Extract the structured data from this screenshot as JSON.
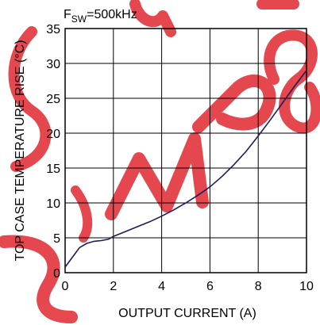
{
  "annotation": {
    "prefix": "F",
    "sub": "SW",
    "rest": "=500kHz"
  },
  "watermark": {
    "text": "MP8",
    "color": "#e0282f"
  },
  "chart_data": {
    "type": "line",
    "title": "",
    "xlabel": "OUTPUT CURRENT (A)",
    "ylabel": "TOP CASE TEMPERATURE RISE (°C)",
    "xlim": [
      0,
      10
    ],
    "ylim": [
      0,
      35
    ],
    "xticks": [
      0,
      2,
      4,
      6,
      8,
      10
    ],
    "yticks": [
      0,
      5,
      10,
      15,
      20,
      25,
      30,
      35
    ],
    "grid": true,
    "line_color": "#1f1a5c",
    "series": [
      {
        "x": [
          0,
          0.3,
          0.6,
          0.9,
          1.2,
          1.5,
          1.8,
          2.0,
          2.5,
          3.0,
          3.5,
          4.0,
          4.5,
          5.0,
          5.5,
          6.0,
          6.5,
          7.0,
          7.5,
          8.0,
          8.5,
          9.0,
          9.5,
          10.0
        ],
        "y": [
          0.8,
          2.2,
          3.6,
          4.2,
          4.5,
          4.6,
          4.8,
          5.2,
          5.9,
          6.6,
          7.3,
          8.1,
          9.0,
          10.0,
          11.1,
          12.3,
          13.8,
          15.5,
          17.4,
          19.6,
          21.9,
          24.3,
          26.7,
          29.0
        ]
      }
    ]
  }
}
